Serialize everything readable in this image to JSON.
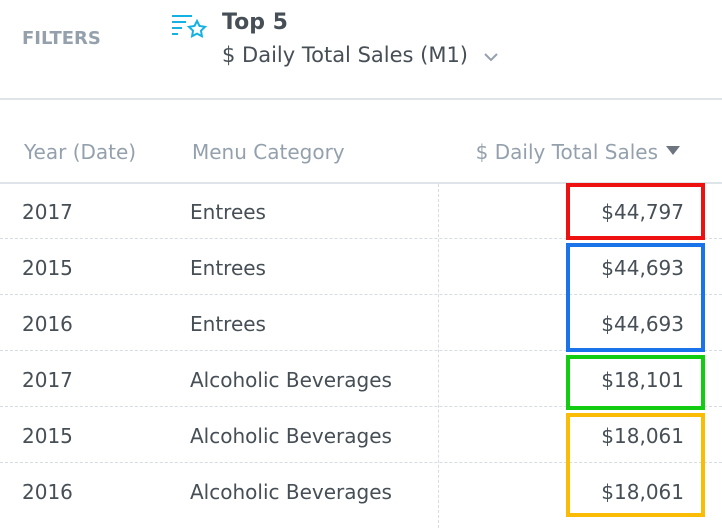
{
  "filters": {
    "label": "FILTERS",
    "title": "Top 5",
    "subtitle": "$ Daily Total Sales (M1)"
  },
  "table": {
    "headers": [
      "Year (Date)",
      "Menu Category",
      "$ Daily Total Sales"
    ],
    "rows": [
      [
        "2017",
        "Entrees",
        "$44,797"
      ],
      [
        "2015",
        "Entrees",
        "$44,693"
      ],
      [
        "2016",
        "Entrees",
        "$44,693"
      ],
      [
        "2017",
        "Alcoholic Beverages",
        "$18,101"
      ],
      [
        "2015",
        "Alcoholic Beverages",
        "$18,061"
      ],
      [
        "2016",
        "Alcoholic Beverages",
        "$18,061"
      ]
    ]
  }
}
